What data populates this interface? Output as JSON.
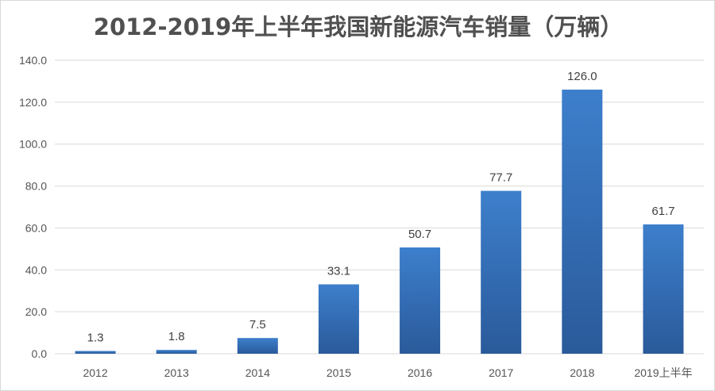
{
  "chart_data": {
    "type": "bar",
    "title": "2012-2019年上半年我国新能源汽车销量（万辆）",
    "categories": [
      "2012",
      "2013",
      "2014",
      "2015",
      "2016",
      "2017",
      "2018",
      "2019上半年"
    ],
    "values": [
      1.3,
      1.8,
      7.5,
      33.1,
      50.7,
      77.7,
      126.0,
      61.7
    ],
    "data_labels": [
      "1.3",
      "1.8",
      "7.5",
      "33.1",
      "50.7",
      "77.7",
      "126.0",
      "61.7"
    ],
    "ylim": [
      0,
      140
    ],
    "yticks": [
      "0.0",
      "20.0",
      "40.0",
      "60.0",
      "80.0",
      "100.0",
      "120.0",
      "140.0"
    ],
    "grid": true,
    "legend": "none",
    "bar_color_top": "#3d7fcc",
    "bar_color_bottom": "#2a5a9a"
  }
}
